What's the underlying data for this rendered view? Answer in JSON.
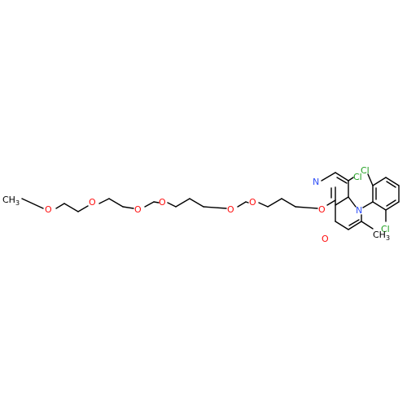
{
  "colors": {
    "bond": "#000000",
    "oxygen": "#ff0d0d",
    "nitrogen": "#3050f8",
    "chlorine": "#1fa01f",
    "carbon_label": "#000000",
    "background": "#ffffff"
  },
  "atoms": {
    "methyl_left": "CH3",
    "ether_oxygen_1": "O",
    "ether_oxygen_2": "O",
    "ether_oxygen_3": "O",
    "ether_oxygen_4": "O",
    "ether_oxygen_5": "O",
    "ether_oxygen_6": "O",
    "aryl_ether_oxygen": "O",
    "ring_nitrogen_pyridine": "N",
    "ring_nitrogen_pyridone": "N",
    "carbonyl_oxygen": "O",
    "chlorine_ring": "Cl",
    "chlorine_phenyl_top": "Cl",
    "chlorine_phenyl_bottom": "Cl",
    "methyl_ring": "CH3"
  }
}
